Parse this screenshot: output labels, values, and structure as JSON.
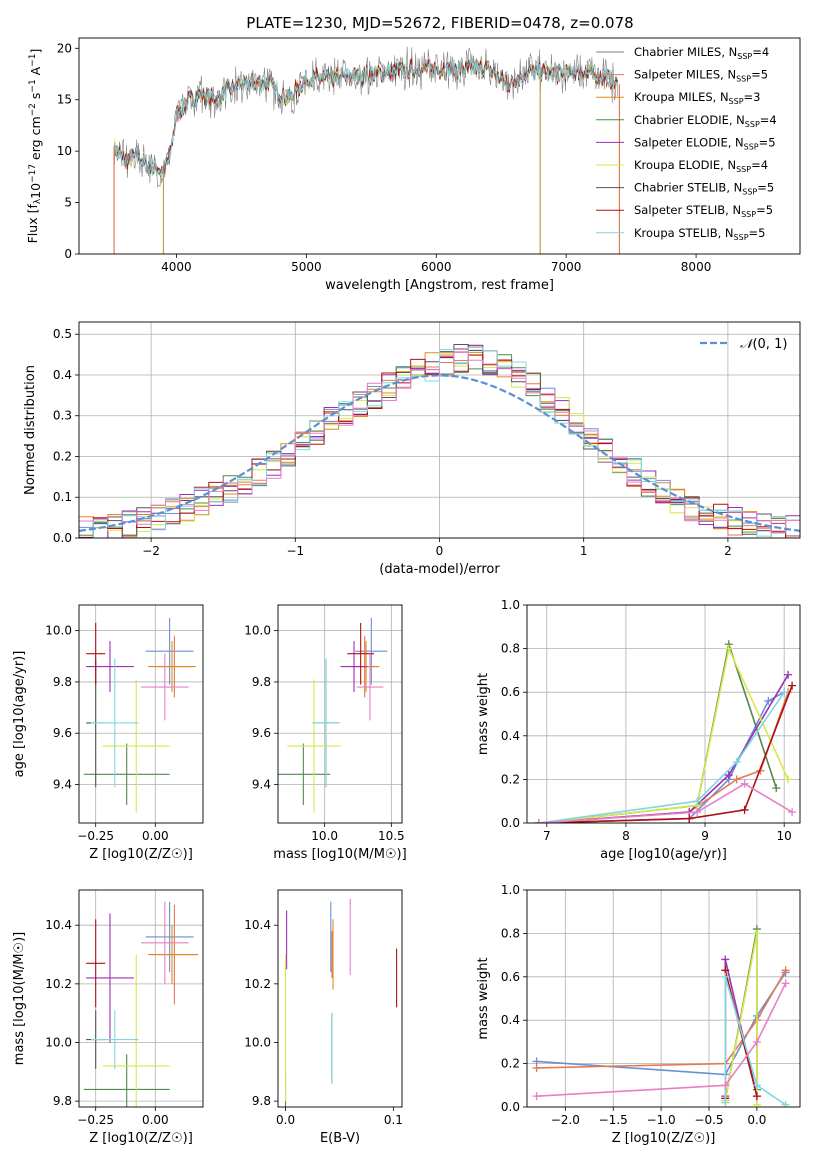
{
  "figure": {
    "title": "PLATE=1230, MJD=52672, FIBERID=0478, z=0.078"
  },
  "colors": {
    "Chabrier MILES": "#6b8fd6",
    "Salpeter MILES": "#e07b54",
    "Kroupa MILES": "#e08a1e",
    "Chabrier ELODIE": "#4f8a4f",
    "Salpeter ELODIE": "#9b30b5",
    "Kroupa ELODIE": "#d8e84a",
    "Chabrier STELIB": "#555555",
    "Salpeter STELIB": "#b01010",
    "Kroupa STELIB": "#7fd8e0",
    "hist_extra": "#e87fc8",
    "gaussian": "#5a8fd6"
  },
  "legend": [
    {
      "prefix": "Chabrier MILES, N",
      "sub": "SSP",
      "suffix": "=4",
      "color": "#808080"
    },
    {
      "prefix": "Salpeter MILES, N",
      "sub": "SSP",
      "suffix": "=5",
      "color": "#e07b54"
    },
    {
      "prefix": "Kroupa MILES, N",
      "sub": "SSP",
      "suffix": "=3",
      "color": "#e08a1e"
    },
    {
      "prefix": "Chabrier ELODIE, N",
      "sub": "SSP",
      "suffix": "=4",
      "color": "#4f8a4f"
    },
    {
      "prefix": "Salpeter ELODIE, N",
      "sub": "SSP",
      "suffix": "=5",
      "color": "#9b30b5"
    },
    {
      "prefix": "Kroupa ELODIE, N",
      "sub": "SSP",
      "suffix": "=4",
      "color": "#d8e84a"
    },
    {
      "prefix": "Chabrier STELIB, N",
      "sub": "SSP",
      "suffix": "=5",
      "color": "#555555"
    },
    {
      "prefix": "Salpeter STELIB, N",
      "sub": "SSP",
      "suffix": "=5",
      "color": "#b01010"
    },
    {
      "prefix": "Kroupa STELIB, N",
      "sub": "SSP",
      "suffix": "=5",
      "color": "#7fd8e0"
    }
  ],
  "chart_data": [
    {
      "id": "spectrum",
      "type": "line",
      "title": "PLATE=1230, MJD=52672, FIBERID=0478, z=0.078",
      "xlabel": "wavelength [Angstrom, rest frame]",
      "ylabel": "Flux [f_λ 10^-17 erg cm^-2 s^-1 A^-1]",
      "xlim": [
        3250,
        8800
      ],
      "ylim": [
        0,
        21
      ],
      "xticks": [
        4000,
        5000,
        6000,
        7000,
        8000
      ],
      "yticks": [
        0,
        5,
        10,
        15,
        20
      ],
      "grid": false,
      "legend_position": "top-right",
      "series_envelope": {
        "x": [
          3520,
          3600,
          3700,
          3800,
          3900,
          3950,
          4000,
          4100,
          4200,
          4300,
          4400,
          4500,
          4700,
          4862,
          5000,
          5200,
          5400,
          5600,
          5800,
          6000,
          6200,
          6400,
          6563,
          6700,
          6900,
          7100,
          7300,
          7400
        ],
        "y": [
          10.5,
          9.0,
          9.5,
          8.5,
          8.0,
          9.5,
          13.5,
          15.0,
          15.5,
          15.0,
          16.0,
          16.5,
          16.7,
          15.0,
          17.0,
          17.2,
          17.3,
          17.6,
          18.0,
          18.0,
          18.0,
          18.0,
          16.5,
          17.8,
          17.5,
          17.7,
          17.2,
          16.5
        ]
      }
    },
    {
      "id": "residuals",
      "type": "bar",
      "xlabel": "(data-model)/error",
      "ylabel": "Normed distribution",
      "xlim": [
        -2.5,
        2.5
      ],
      "ylim": [
        0,
        0.53
      ],
      "xticks": [
        -2,
        -1,
        0,
        1,
        2
      ],
      "yticks": [
        0.0,
        0.1,
        0.2,
        0.3,
        0.4,
        0.5
      ],
      "grid": true,
      "legend_position": "top-right",
      "legend_label": "N(0,1)",
      "bin_edges": [
        -2.5,
        -2.4,
        -2.3,
        -2.2,
        -2.1,
        -2.0,
        -1.9,
        -1.8,
        -1.7,
        -1.6,
        -1.5,
        -1.4,
        -1.3,
        -1.2,
        -1.1,
        -1.0,
        -0.9,
        -0.8,
        -0.7,
        -0.6,
        -0.5,
        -0.4,
        -0.3,
        -0.2,
        -0.1,
        0.0,
        0.1,
        0.2,
        0.3,
        0.4,
        0.5,
        0.6,
        0.7,
        0.8,
        0.9,
        1.0,
        1.1,
        1.2,
        1.3,
        1.4,
        1.5,
        1.6,
        1.7,
        1.8,
        1.9,
        2.0,
        2.1,
        2.2,
        2.3,
        2.4,
        2.5
      ],
      "base_density": [
        0.02,
        0.025,
        0.03,
        0.038,
        0.045,
        0.055,
        0.065,
        0.075,
        0.09,
        0.105,
        0.12,
        0.14,
        0.16,
        0.18,
        0.2,
        0.23,
        0.26,
        0.29,
        0.31,
        0.33,
        0.35,
        0.37,
        0.39,
        0.41,
        0.42,
        0.43,
        0.44,
        0.44,
        0.43,
        0.42,
        0.4,
        0.37,
        0.34,
        0.31,
        0.28,
        0.25,
        0.22,
        0.19,
        0.16,
        0.13,
        0.11,
        0.09,
        0.075,
        0.06,
        0.05,
        0.04,
        0.035,
        0.03,
        0.025,
        0.02
      ]
    },
    {
      "id": "z-age",
      "type": "scatter",
      "xlabel": "Z [log10(Z/Z☉)]",
      "ylabel": "age  [log10(age/yr)]",
      "xlim": [
        -0.32,
        0.2
      ],
      "ylim": [
        9.25,
        10.1
      ],
      "xticks": [
        -0.25,
        0.0
      ],
      "yticks": [
        9.4,
        9.6,
        9.8,
        10.0
      ],
      "grid": true,
      "points": [
        {
          "model": "Chabrier MILES",
          "x": 0.06,
          "y": 9.92,
          "xerr": 0.1,
          "yerr": 0.13
        },
        {
          "model": "Salpeter MILES",
          "x": 0.08,
          "y": 9.86,
          "xerr": 0.08,
          "yerr": 0.12
        },
        {
          "model": "Kroupa MILES",
          "x": 0.07,
          "y": 9.86,
          "xerr": 0.1,
          "yerr": 0.1
        },
        {
          "model": "Chabrier ELODIE",
          "x": -0.12,
          "y": 9.44,
          "xerr": 0.18,
          "yerr": 0.12
        },
        {
          "model": "Salpeter ELODIE",
          "x": -0.19,
          "y": 9.86,
          "xerr": 0.1,
          "yerr": 0.1
        },
        {
          "model": "Kroupa ELODIE",
          "x": -0.08,
          "y": 9.55,
          "xerr": 0.14,
          "yerr": 0.26
        },
        {
          "model": "Chabrier STELIB",
          "x": -0.25,
          "y": 9.64,
          "xerr": 0.04,
          "yerr": 0.25
        },
        {
          "model": "Salpeter STELIB",
          "x": -0.25,
          "y": 9.91,
          "xerr": 0.04,
          "yerr": 0.12
        },
        {
          "model": "Kroupa STELIB",
          "x": -0.17,
          "y": 9.64,
          "xerr": 0.1,
          "yerr": 0.25
        },
        {
          "model": "extra",
          "x": 0.04,
          "y": 9.78,
          "xerr": 0.1,
          "yerr": 0.13
        }
      ]
    },
    {
      "id": "mass-age",
      "type": "scatter",
      "xlabel": "mass [log10(M/M☉)]",
      "ylabel": "",
      "xlim": [
        9.65,
        10.58
      ],
      "ylim": [
        9.25,
        10.1
      ],
      "xticks": [
        10.0,
        10.5
      ],
      "yticks": [
        9.4,
        9.6,
        9.8,
        10.0
      ],
      "grid": true,
      "points": [
        {
          "model": "Chabrier MILES",
          "x": 10.35,
          "y": 9.92,
          "xerr": 0.12,
          "yerr": 0.13
        },
        {
          "model": "Salpeter MILES",
          "x": 10.3,
          "y": 9.86,
          "xerr": 0.1,
          "yerr": 0.12
        },
        {
          "model": "Kroupa MILES",
          "x": 10.31,
          "y": 9.86,
          "xerr": 0.1,
          "yerr": 0.1
        },
        {
          "model": "Chabrier ELODIE",
          "x": 9.84,
          "y": 9.44,
          "xerr": 0.2,
          "yerr": 0.12
        },
        {
          "model": "Salpeter ELODIE",
          "x": 10.22,
          "y": 9.86,
          "xerr": 0.1,
          "yerr": 0.1
        },
        {
          "model": "Kroupa ELODIE",
          "x": 9.92,
          "y": 9.55,
          "xerr": 0.2,
          "yerr": 0.26
        },
        {
          "model": "Chabrier STELIB",
          "x": 10.01,
          "y": 9.64,
          "xerr": 0.1,
          "yerr": 0.25
        },
        {
          "model": "Salpeter STELIB",
          "x": 10.27,
          "y": 9.91,
          "xerr": 0.1,
          "yerr": 0.12
        },
        {
          "model": "Kroupa STELIB",
          "x": 10.01,
          "y": 9.64,
          "xerr": 0.1,
          "yerr": 0.25
        },
        {
          "model": "extra",
          "x": 10.34,
          "y": 9.78,
          "xerr": 0.1,
          "yerr": 0.13
        }
      ]
    },
    {
      "id": "age-weight",
      "type": "line",
      "xlabel": "age  [log10(age/yr)]",
      "ylabel": "mass weight",
      "xlim": [
        6.75,
        10.2
      ],
      "ylim": [
        0,
        1.0
      ],
      "xticks": [
        7,
        8,
        9,
        10
      ],
      "yticks": [
        0.0,
        0.2,
        0.4,
        0.6,
        0.8,
        1.0
      ],
      "grid": true,
      "series": [
        {
          "model": "Chabrier MILES",
          "x": [
            6.9,
            8.8,
            9.3,
            9.8,
            10.0
          ],
          "y": [
            0.0,
            0.02,
            0.2,
            0.56,
            0.6
          ]
        },
        {
          "model": "Salpeter MILES",
          "x": [
            6.9,
            8.8,
            9.4,
            9.7,
            10.05
          ],
          "y": [
            0.0,
            0.05,
            0.2,
            0.24,
            0.6
          ]
        },
        {
          "model": "Chabrier ELODIE",
          "x": [
            6.9,
            8.9,
            9.3,
            9.9
          ],
          "y": [
            0.0,
            0.08,
            0.82,
            0.16
          ]
        },
        {
          "model": "Salpeter ELODIE",
          "x": [
            6.9,
            8.8,
            9.3,
            10.05
          ],
          "y": [
            0.0,
            0.05,
            0.22,
            0.68
          ]
        },
        {
          "model": "Kroupa ELODIE",
          "x": [
            6.9,
            8.9,
            9.3,
            10.05
          ],
          "y": [
            0.0,
            0.08,
            0.8,
            0.2
          ]
        },
        {
          "model": "Salpeter STELIB",
          "x": [
            6.9,
            8.8,
            9.5,
            10.1
          ],
          "y": [
            0.0,
            0.02,
            0.06,
            0.63
          ]
        },
        {
          "model": "Kroupa STELIB",
          "x": [
            6.9,
            8.9,
            9.4,
            10.0
          ],
          "y": [
            0.0,
            0.1,
            0.28,
            0.6
          ]
        },
        {
          "model": "extra",
          "x": [
            6.9,
            8.9,
            9.5,
            10.1
          ],
          "y": [
            0.0,
            0.05,
            0.18,
            0.05
          ]
        }
      ]
    },
    {
      "id": "z-mass",
      "type": "scatter",
      "xlabel": "Z [log10(Z/Z☉)]",
      "ylabel": "mass [log10(M/M☉)]",
      "xlim": [
        -0.32,
        0.2
      ],
      "ylim": [
        9.78,
        10.52
      ],
      "xticks": [
        -0.25,
        0.0
      ],
      "yticks": [
        9.8,
        10.0,
        10.2,
        10.4
      ],
      "grid": true,
      "points": [
        {
          "model": "Chabrier MILES",
          "x": 0.06,
          "y": 10.36,
          "xerr": 0.1,
          "yerr": 0.12
        },
        {
          "model": "Salpeter MILES",
          "x": 0.08,
          "y": 10.3,
          "xerr": 0.1,
          "yerr": 0.17
        },
        {
          "model": "Kroupa MILES",
          "x": 0.07,
          "y": 10.3,
          "xerr": 0.1,
          "yerr": 0.1
        },
        {
          "model": "Chabrier ELODIE",
          "x": -0.12,
          "y": 9.84,
          "xerr": 0.18,
          "yerr": 0.12
        },
        {
          "model": "Salpeter ELODIE",
          "x": -0.19,
          "y": 10.22,
          "xerr": 0.1,
          "yerr": 0.22
        },
        {
          "model": "Kroupa ELODIE",
          "x": -0.08,
          "y": 9.92,
          "xerr": 0.14,
          "yerr": 0.38
        },
        {
          "model": "Chabrier STELIB",
          "x": -0.25,
          "y": 10.01,
          "xerr": 0.04,
          "yerr": 0.1
        },
        {
          "model": "Salpeter STELIB",
          "x": -0.25,
          "y": 10.27,
          "xerr": 0.04,
          "yerr": 0.15
        },
        {
          "model": "Kroupa STELIB",
          "x": -0.17,
          "y": 10.01,
          "xerr": 0.1,
          "yerr": 0.1
        },
        {
          "model": "extra",
          "x": 0.04,
          "y": 10.34,
          "xerr": 0.1,
          "yerr": 0.14
        }
      ]
    },
    {
      "id": "ebv-mass",
      "type": "scatter",
      "xlabel": "E(B-V)",
      "ylabel": "",
      "xlim": [
        -0.007,
        0.108
      ],
      "ylim": [
        9.78,
        10.52
      ],
      "xticks": [
        0.0,
        0.1
      ],
      "yticks": [
        9.8,
        10.0,
        10.2,
        10.4
      ],
      "grid": false,
      "points": [
        {
          "model": "Chabrier MILES",
          "x": 0.042,
          "y": 10.36,
          "xerr": 0,
          "yerr": 0.12
        },
        {
          "model": "Salpeter MILES",
          "x": 0.043,
          "y": 10.3,
          "xerr": 0,
          "yerr": 0.08
        },
        {
          "model": "Kroupa MILES",
          "x": 0.044,
          "y": 10.3,
          "xerr": 0,
          "yerr": 0.12
        },
        {
          "model": "Chabrier ELODIE",
          "x": 0.0,
          "y": 9.84,
          "xerr": 0,
          "yerr": 0.06
        },
        {
          "model": "Salpeter ELODIE",
          "x": 0.001,
          "y": 10.35,
          "xerr": 0,
          "yerr": 0.1
        },
        {
          "model": "Kroupa ELODIE",
          "x": 0.0,
          "y": 10.05,
          "xerr": 0,
          "yerr": 0.25
        },
        {
          "model": "Chabrier STELIB",
          "x": 0.043,
          "y": 9.98,
          "xerr": 0,
          "yerr": 0.12
        },
        {
          "model": "Salpeter STELIB",
          "x": 0.103,
          "y": 10.22,
          "xerr": 0,
          "yerr": 0.1
        },
        {
          "model": "Kroupa STELIB",
          "x": 0.043,
          "y": 9.98,
          "xerr": 0,
          "yerr": 0.12
        },
        {
          "model": "extra",
          "x": 0.06,
          "y": 10.36,
          "xerr": 0,
          "yerr": 0.13
        }
      ]
    },
    {
      "id": "z-weight",
      "type": "line",
      "xlabel": "Z [log10(Z/Z☉)]",
      "ylabel": "mass weight",
      "xlim": [
        -2.4,
        0.45
      ],
      "ylim": [
        0,
        1.0
      ],
      "xticks": [
        -2.0,
        -1.5,
        -1.0,
        -0.5,
        0.0
      ],
      "yticks": [
        0.0,
        0.2,
        0.4,
        0.6,
        0.8,
        1.0
      ],
      "grid": true,
      "series": [
        {
          "model": "Chabrier MILES",
          "x": [
            -2.3,
            -0.33,
            0.0,
            0.3
          ],
          "y": [
            0.21,
            0.15,
            0.42,
            0.62
          ]
        },
        {
          "model": "Salpeter MILES",
          "x": [
            -2.3,
            -0.33,
            0.0,
            0.3
          ],
          "y": [
            0.18,
            0.2,
            0.4,
            0.63
          ]
        },
        {
          "model": "Chabrier ELODIE",
          "x": [
            -0.33,
            0.0,
            0.0
          ],
          "y": [
            0.03,
            0.82,
            0.08
          ]
        },
        {
          "model": "Salpeter ELODIE",
          "x": [
            -0.33,
            -0.33,
            0.0
          ],
          "y": [
            0.05,
            0.68,
            0.05
          ]
        },
        {
          "model": "Kroupa ELODIE",
          "x": [
            -0.33,
            0.0,
            0.0
          ],
          "y": [
            0.03,
            0.8,
            0.01
          ]
        },
        {
          "model": "Salpeter STELIB",
          "x": [
            -0.33,
            -0.33,
            0.0
          ],
          "y": [
            0.04,
            0.63,
            0.05
          ]
        },
        {
          "model": "Kroupa STELIB",
          "x": [
            -0.33,
            -0.33,
            0.0,
            0.3
          ],
          "y": [
            0.02,
            0.6,
            0.1,
            0.01
          ]
        },
        {
          "model": "extra",
          "x": [
            -2.3,
            -0.33,
            0.0,
            0.3
          ],
          "y": [
            0.05,
            0.1,
            0.3,
            0.57
          ]
        }
      ]
    }
  ]
}
